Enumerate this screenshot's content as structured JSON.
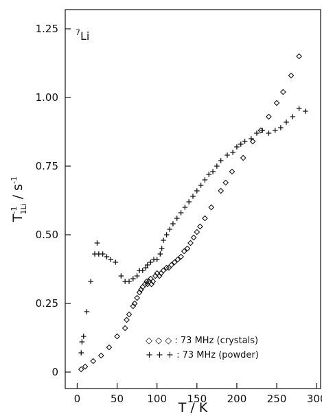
{
  "chart_data": {
    "type": "scatter",
    "nucleus_label": {
      "mass": "7",
      "element": "Li"
    },
    "xlabel": "T / K",
    "ylabel": {
      "base": "T",
      "sup": "-1",
      "sub": "1Li",
      "sep": " / ",
      "unit": "s",
      "unit_sup": "-1"
    },
    "xlim": [
      -15,
      305
    ],
    "ylim": [
      -0.06,
      1.32
    ],
    "x_ticks": [
      0,
      50,
      100,
      150,
      200,
      250,
      300
    ],
    "x_tick_labels": [
      "0",
      "50",
      "100",
      "150",
      "200",
      "250",
      "300"
    ],
    "y_ticks": [
      0,
      0.25,
      0.5,
      0.75,
      1.0,
      1.25
    ],
    "y_tick_labels": [
      "0",
      "0.25",
      "0.50",
      "0.75",
      "1.00",
      "1.25"
    ],
    "grid": false,
    "legend_position": "bottom-right",
    "series": [
      {
        "name": "73 MHz (crystals)",
        "legend_label": "◇ ◇ ◇ : 73 MHz (crystals)",
        "marker": "diamond",
        "points": [
          [
            5,
            0.01
          ],
          [
            10,
            0.02
          ],
          [
            20,
            0.04
          ],
          [
            30,
            0.06
          ],
          [
            40,
            0.09
          ],
          [
            50,
            0.13
          ],
          [
            60,
            0.16
          ],
          [
            62,
            0.19
          ],
          [
            65,
            0.21
          ],
          [
            70,
            0.24
          ],
          [
            72,
            0.25
          ],
          [
            75,
            0.27
          ],
          [
            78,
            0.29
          ],
          [
            80,
            0.3
          ],
          [
            82,
            0.31
          ],
          [
            85,
            0.32
          ],
          [
            87,
            0.33
          ],
          [
            88,
            0.32
          ],
          [
            90,
            0.33
          ],
          [
            92,
            0.34
          ],
          [
            93,
            0.32
          ],
          [
            95,
            0.33
          ],
          [
            98,
            0.35
          ],
          [
            100,
            0.36
          ],
          [
            103,
            0.35
          ],
          [
            105,
            0.36
          ],
          [
            108,
            0.37
          ],
          [
            112,
            0.38
          ],
          [
            115,
            0.38
          ],
          [
            118,
            0.39
          ],
          [
            122,
            0.4
          ],
          [
            126,
            0.41
          ],
          [
            130,
            0.42
          ],
          [
            134,
            0.44
          ],
          [
            138,
            0.45
          ],
          [
            142,
            0.47
          ],
          [
            146,
            0.49
          ],
          [
            150,
            0.51
          ],
          [
            154,
            0.53
          ],
          [
            160,
            0.56
          ],
          [
            168,
            0.6
          ],
          [
            180,
            0.66
          ],
          [
            186,
            0.69
          ],
          [
            194,
            0.73
          ],
          [
            208,
            0.78
          ],
          [
            220,
            0.84
          ],
          [
            230,
            0.88
          ],
          [
            240,
            0.93
          ],
          [
            250,
            0.98
          ],
          [
            258,
            1.02
          ],
          [
            268,
            1.08
          ],
          [
            278,
            1.15
          ]
        ]
      },
      {
        "name": "73 MHz (powder)",
        "legend_label": "+ + + : 73 MHz (powder)",
        "marker": "plus",
        "points": [
          [
            5,
            0.07
          ],
          [
            6,
            0.11
          ],
          [
            8,
            0.13
          ],
          [
            12,
            0.22
          ],
          [
            17,
            0.33
          ],
          [
            22,
            0.43
          ],
          [
            25,
            0.47
          ],
          [
            27,
            0.43
          ],
          [
            32,
            0.43
          ],
          [
            37,
            0.42
          ],
          [
            42,
            0.41
          ],
          [
            48,
            0.4
          ],
          [
            55,
            0.35
          ],
          [
            60,
            0.33
          ],
          [
            65,
            0.33
          ],
          [
            70,
            0.34
          ],
          [
            75,
            0.35
          ],
          [
            78,
            0.37
          ],
          [
            82,
            0.37
          ],
          [
            86,
            0.38
          ],
          [
            88,
            0.39
          ],
          [
            92,
            0.4
          ],
          [
            96,
            0.41
          ],
          [
            100,
            0.41
          ],
          [
            104,
            0.43
          ],
          [
            106,
            0.45
          ],
          [
            108,
            0.48
          ],
          [
            112,
            0.5
          ],
          [
            116,
            0.52
          ],
          [
            120,
            0.54
          ],
          [
            125,
            0.56
          ],
          [
            130,
            0.58
          ],
          [
            135,
            0.6
          ],
          [
            140,
            0.62
          ],
          [
            145,
            0.64
          ],
          [
            150,
            0.66
          ],
          [
            155,
            0.68
          ],
          [
            160,
            0.7
          ],
          [
            165,
            0.72
          ],
          [
            170,
            0.73
          ],
          [
            175,
            0.75
          ],
          [
            180,
            0.77
          ],
          [
            188,
            0.79
          ],
          [
            195,
            0.8
          ],
          [
            200,
            0.82
          ],
          [
            205,
            0.83
          ],
          [
            210,
            0.84
          ],
          [
            218,
            0.85
          ],
          [
            225,
            0.87
          ],
          [
            232,
            0.88
          ],
          [
            240,
            0.87
          ],
          [
            248,
            0.88
          ],
          [
            255,
            0.89
          ],
          [
            262,
            0.91
          ],
          [
            270,
            0.93
          ],
          [
            278,
            0.96
          ],
          [
            286,
            0.95
          ]
        ]
      }
    ]
  }
}
